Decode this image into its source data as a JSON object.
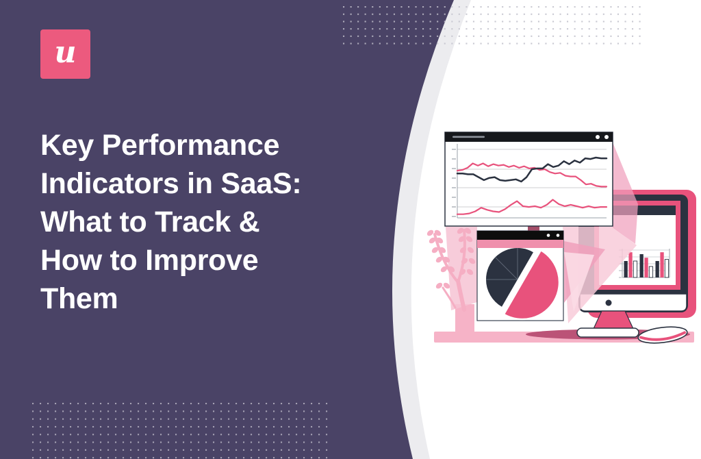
{
  "page": {
    "background_color": "#4a4366",
    "panel_color": "#ffffff",
    "curve_band_color": "#ececef",
    "accent_pink": "#e8527c",
    "dark_navy": "#2b3240",
    "light_pink": "#f5aec3"
  },
  "logo": {
    "letter": "u",
    "bg_color": "#ec5a7e"
  },
  "heading": {
    "text": "Key Performance Indicators in SaaS: What to Track & How to Improve Them",
    "lines": [
      "Key Performance",
      "Indicators in SaaS:",
      "What to Track &",
      "How to Improve",
      "Them"
    ]
  },
  "chart_data": [
    {
      "id": "line-window-chart",
      "type": "line",
      "title": "",
      "legend": "none",
      "grid": true,
      "series": [
        {
          "name": "pink-upper",
          "color": "#e8527c",
          "values": [
            0.65,
            0.66,
            0.69,
            0.75,
            0.72,
            0.75,
            0.71,
            0.74,
            0.72,
            0.73,
            0.7,
            0.72,
            0.69,
            0.71,
            0.68,
            0.69,
            0.66,
            0.67,
            0.63,
            0.61,
            0.62,
            0.58,
            0.57,
            0.57,
            0.52,
            0.46,
            0.47,
            0.44,
            0.43,
            0.43
          ]
        },
        {
          "name": "dark-rising",
          "color": "#2b3240",
          "values": [
            0.61,
            0.61,
            0.6,
            0.6,
            0.56,
            0.52,
            0.55,
            0.56,
            0.52,
            0.51,
            0.52,
            0.53,
            0.5,
            0.56,
            0.67,
            0.68,
            0.68,
            0.74,
            0.7,
            0.72,
            0.78,
            0.74,
            0.79,
            0.76,
            0.82,
            0.81,
            0.83,
            0.82,
            0.82
          ]
        },
        {
          "name": "pink-lower",
          "color": "#e8527c",
          "values": [
            0.05,
            0.05,
            0.06,
            0.09,
            0.14,
            0.11,
            0.09,
            0.08,
            0.12,
            0.18,
            0.23,
            0.16,
            0.15,
            0.16,
            0.14,
            0.18,
            0.25,
            0.19,
            0.16,
            0.18,
            0.16,
            0.14,
            0.16,
            0.14,
            0.15,
            0.15
          ]
        }
      ]
    },
    {
      "id": "pie-window-chart",
      "type": "pie",
      "title": "",
      "slices": [
        {
          "name": "pink-highlight",
          "color": "#e8527c",
          "fraction": 0.5,
          "exploded": true
        },
        {
          "name": "dark-1",
          "color": "#2b3240",
          "fraction": 0.167
        },
        {
          "name": "dark-2",
          "color": "#2b3240",
          "fraction": 0.125
        },
        {
          "name": "dark-3",
          "color": "#2b3240",
          "fraction": 0.125
        },
        {
          "name": "dark-4",
          "color": "#2b3240",
          "fraction": 0.083
        }
      ]
    },
    {
      "id": "monitor-bar-chart",
      "type": "bar",
      "title": "",
      "groups": 3,
      "series": [
        {
          "name": "dark-bars",
          "color": "#2b3240",
          "values": [
            0.6,
            0.85,
            0.6
          ]
        },
        {
          "name": "pink-bars",
          "color": "#e8527c",
          "values": [
            0.92,
            0.72,
            0.92
          ]
        },
        {
          "name": "white-bars",
          "color": "#ffffff",
          "values": [
            0.6,
            0.4,
            0.66
          ]
        }
      ]
    }
  ]
}
